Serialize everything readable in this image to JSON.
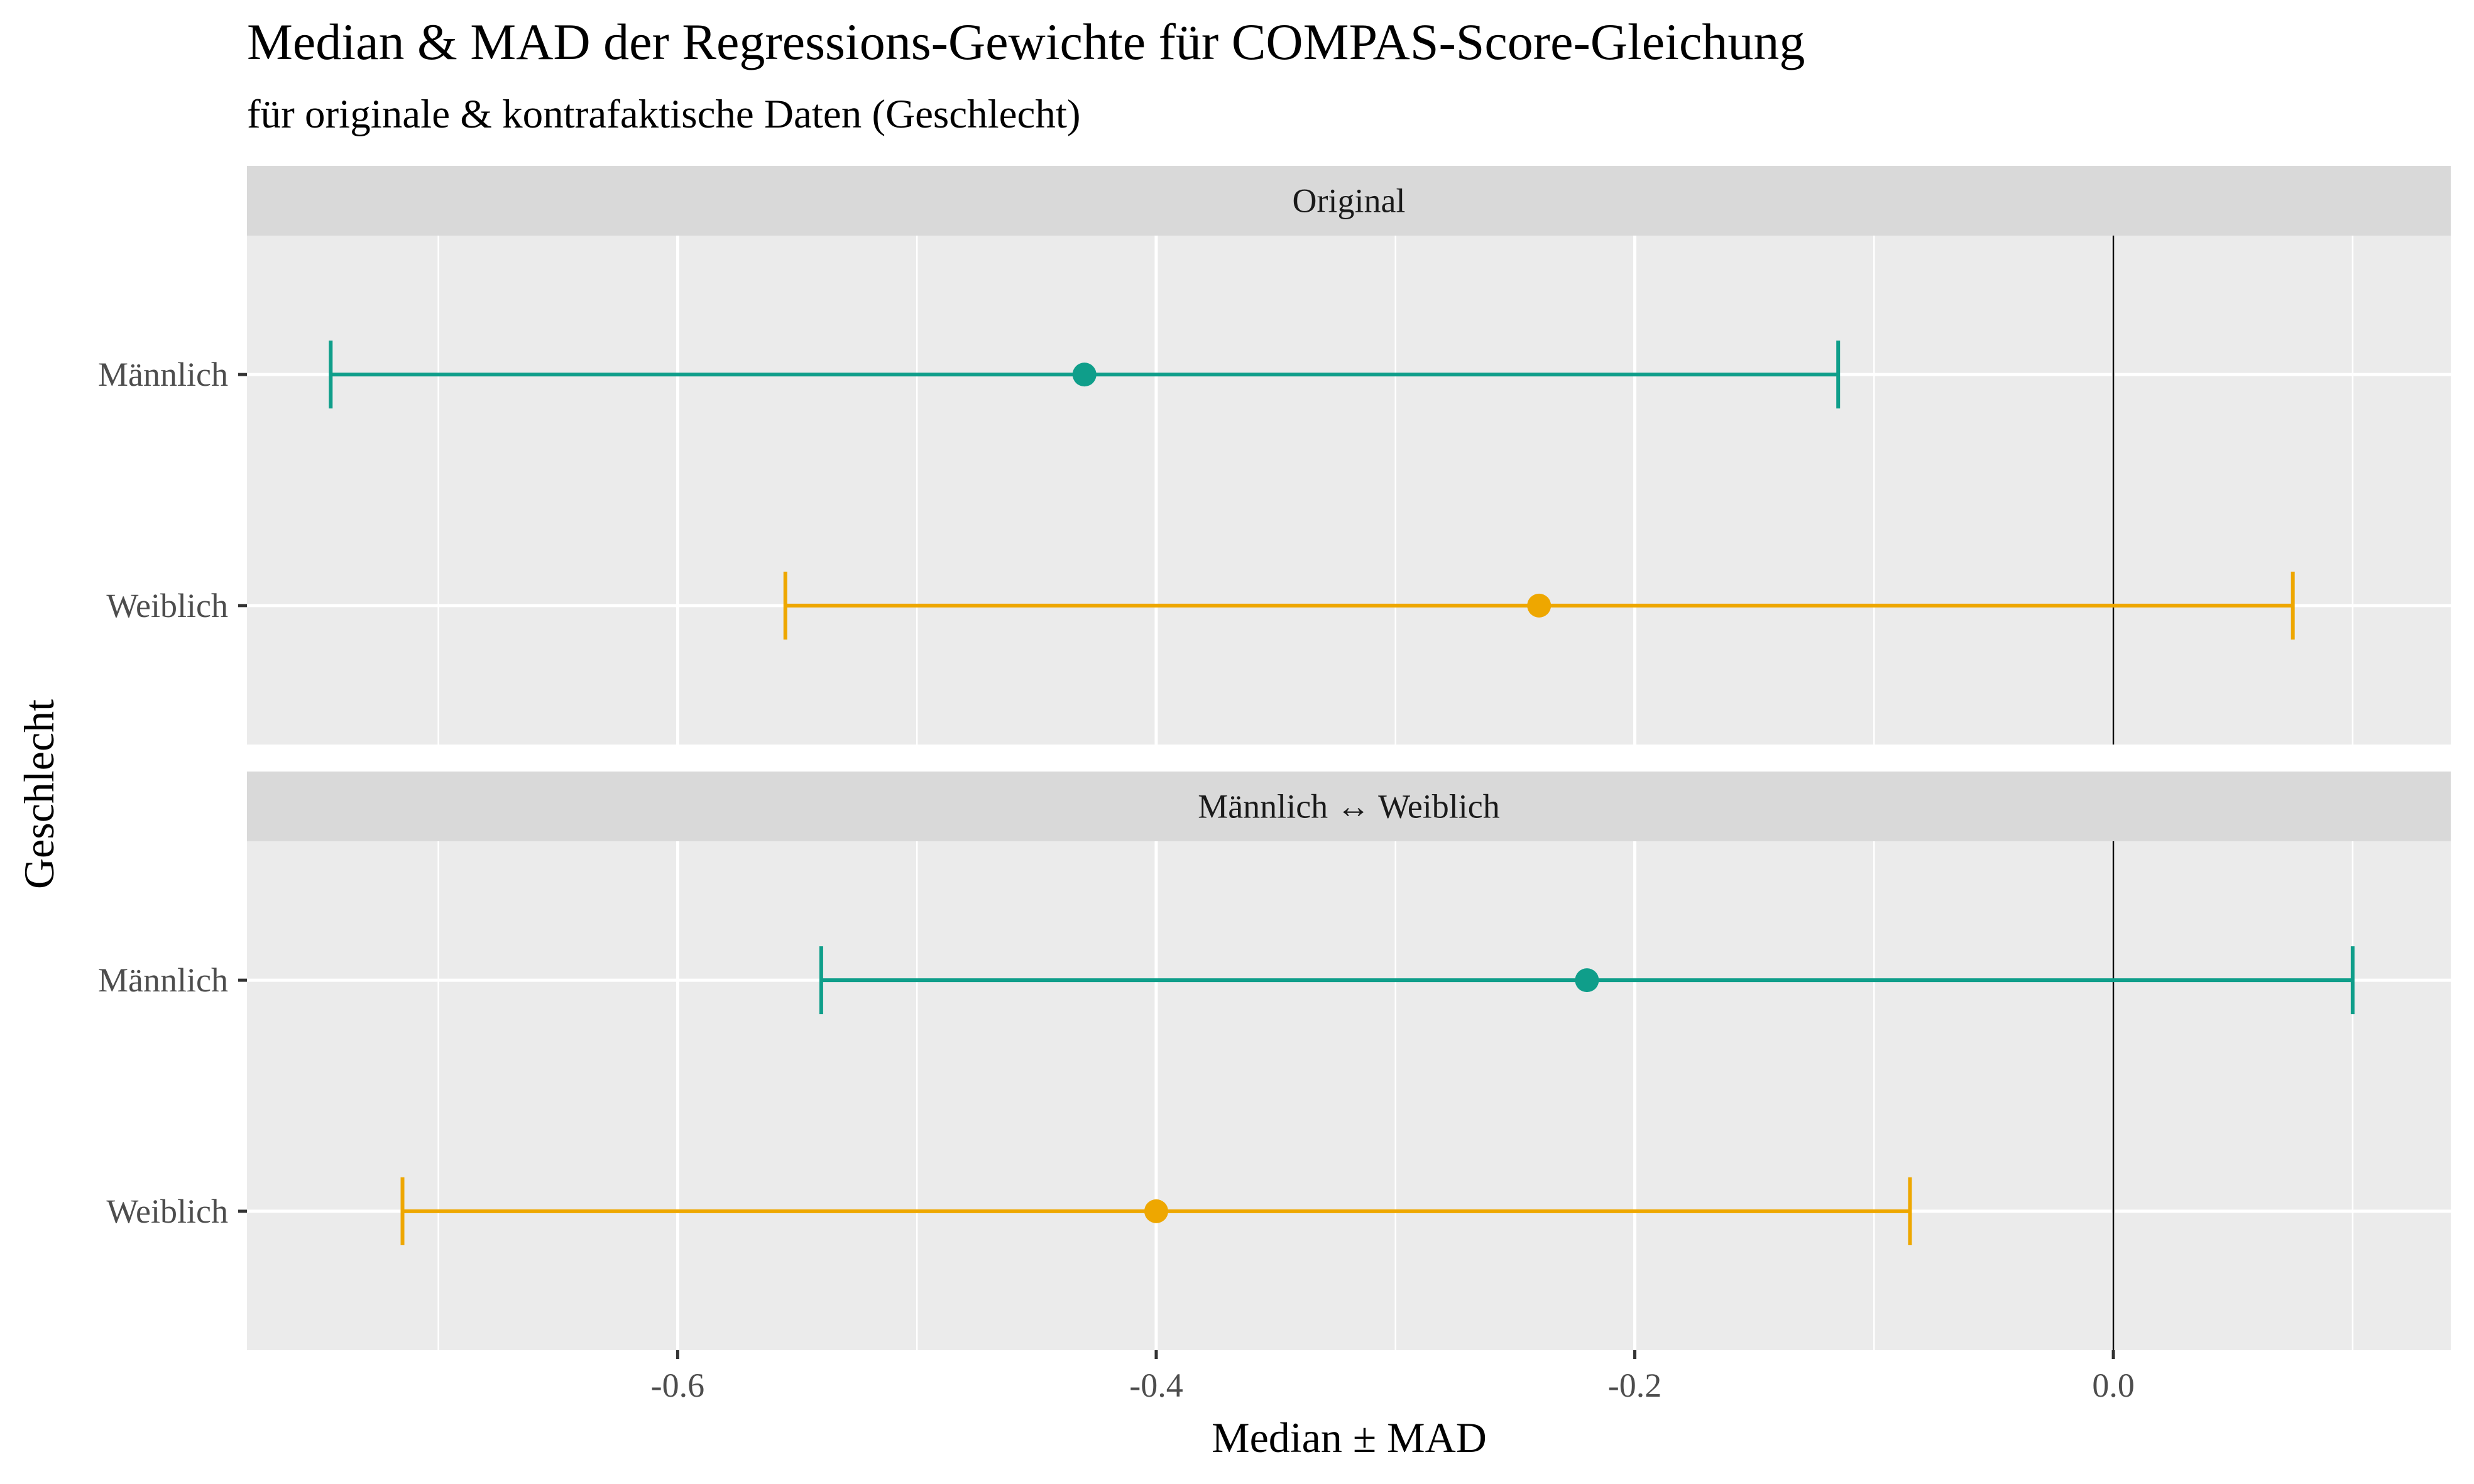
{
  "chart_data": {
    "type": "errorbar",
    "title": "Median & MAD der Regressions-Gewichte für COMPAS-Score-Gleichung",
    "subtitle": "für originale & kontrafaktische Daten (Geschlecht)",
    "xlabel": "Median ± MAD",
    "ylabel": "Geschlecht",
    "xlim": [
      -0.78,
      0.141
    ],
    "x_ticks": [
      -0.6,
      -0.4,
      -0.2,
      0.0
    ],
    "x_tick_labels": [
      "-0.6",
      "-0.4",
      "-0.2",
      "0.0"
    ],
    "reference_line": 0.0,
    "grid": true,
    "categories": [
      "Männlich",
      "Weiblich"
    ],
    "colors": {
      "Männlich": "#0f9e8a",
      "Weiblich": "#eea700"
    },
    "panels": [
      {
        "label": "Original",
        "series": [
          {
            "category": "Männlich",
            "median": -0.43,
            "low": -0.745,
            "high": -0.115
          },
          {
            "category": "Weiblich",
            "median": -0.24,
            "low": -0.555,
            "high": 0.075
          }
        ]
      },
      {
        "label": "Männlich ↔ Weiblich",
        "series": [
          {
            "category": "Männlich",
            "median": -0.22,
            "low": -0.54,
            "high": 0.1
          },
          {
            "category": "Weiblich",
            "median": -0.4,
            "low": -0.715,
            "high": -0.085
          }
        ]
      }
    ]
  }
}
